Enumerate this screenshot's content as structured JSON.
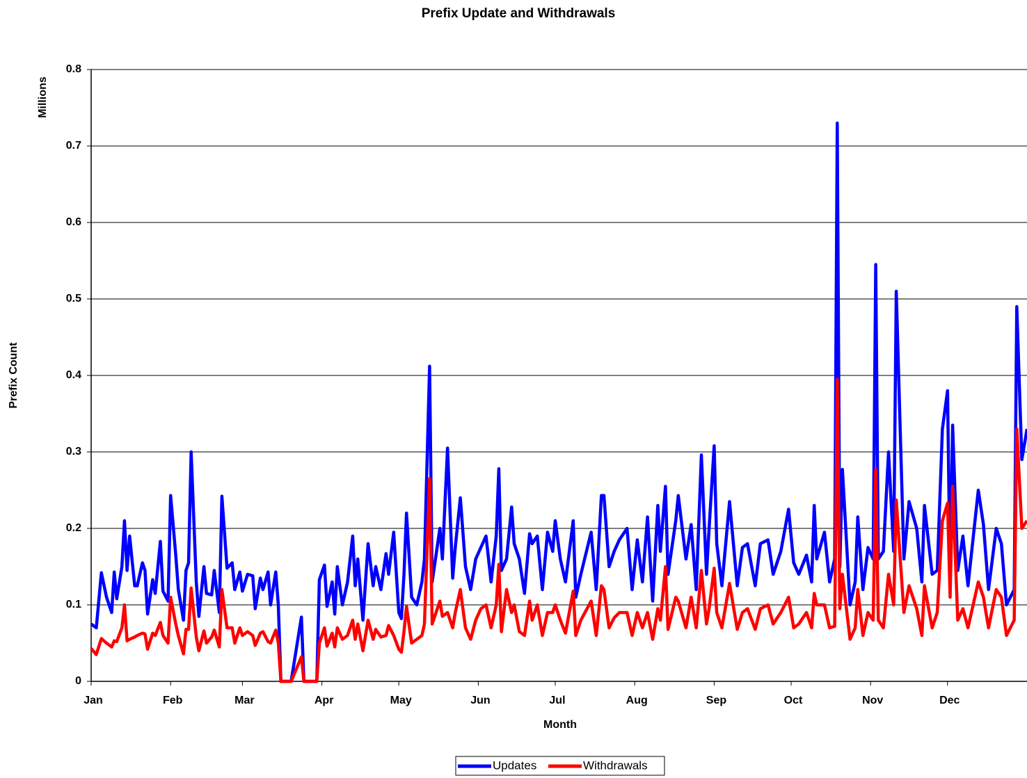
{
  "chart_data": {
    "type": "line",
    "title": "Prefix Update and Withdrawals",
    "x_label": "Month",
    "y_label": "Prefix Count",
    "y_unit_label": "Millions",
    "xlim": [
      0,
      365
    ],
    "xticks": [
      {
        "value": 0,
        "label": "Jan"
      },
      {
        "value": 31,
        "label": "Feb"
      },
      {
        "value": 59,
        "label": "Mar"
      },
      {
        "value": 90,
        "label": "Apr"
      },
      {
        "value": 120,
        "label": "May"
      },
      {
        "value": 151,
        "label": "Jun"
      },
      {
        "value": 181,
        "label": "Jul"
      },
      {
        "value": 212,
        "label": "Aug"
      },
      {
        "value": 243,
        "label": "Sep"
      },
      {
        "value": 273,
        "label": "Oct"
      },
      {
        "value": 304,
        "label": "Nov"
      },
      {
        "value": 334,
        "label": "Dec"
      }
    ],
    "ylim": [
      0,
      0.8
    ],
    "yticks": [
      0,
      0.1,
      0.2,
      0.3,
      0.4,
      0.5,
      0.6,
      0.7,
      0.8
    ],
    "grid": true,
    "legend": "bottom",
    "x": [
      0,
      2,
      4,
      6,
      8,
      9,
      10,
      12,
      13,
      14,
      15,
      17,
      18,
      20,
      21,
      22,
      24,
      25,
      27,
      28,
      30,
      31,
      33,
      34,
      36,
      37,
      38,
      39,
      41,
      42,
      44,
      45,
      47,
      48,
      50,
      51,
      53,
      55,
      56,
      58,
      59,
      61,
      63,
      64,
      66,
      67,
      69,
      70,
      72,
      73,
      74,
      78,
      82,
      83,
      88,
      89,
      91,
      92,
      94,
      95,
      96,
      98,
      100,
      102,
      103,
      104,
      106,
      108,
      110,
      111,
      113,
      115,
      116,
      118,
      120,
      121,
      122,
      123,
      125,
      127,
      129,
      130,
      132,
      133,
      136,
      137,
      139,
      141,
      142,
      144,
      146,
      148,
      150,
      152,
      154,
      156,
      158,
      159,
      160,
      162,
      164,
      165,
      167,
      169,
      171,
      172,
      174,
      176,
      178,
      180,
      181,
      183,
      185,
      188,
      189,
      191,
      195,
      197,
      199,
      200,
      202,
      204,
      206,
      209,
      211,
      213,
      215,
      217,
      219,
      221,
      222,
      224,
      225,
      228,
      229,
      232,
      234,
      236,
      238,
      240,
      241,
      243,
      244,
      246,
      249,
      252,
      254,
      256,
      259,
      261,
      264,
      266,
      269,
      272,
      274,
      276,
      279,
      281,
      282,
      283,
      286,
      288,
      290,
      291,
      292,
      293,
      296,
      298,
      299,
      301,
      303,
      305,
      306,
      307,
      309,
      311,
      313,
      314,
      317,
      319,
      322,
      324,
      325,
      328,
      330,
      332,
      334,
      335,
      336,
      338,
      340,
      342,
      346,
      348,
      350,
      353,
      355,
      357,
      360,
      361,
      363,
      365
    ],
    "series": [
      {
        "name": "Updates",
        "color": "#0000ff",
        "values": [
          0.075,
          0.07,
          0.142,
          0.11,
          0.09,
          0.143,
          0.108,
          0.15,
          0.21,
          0.145,
          0.19,
          0.125,
          0.125,
          0.155,
          0.145,
          0.088,
          0.133,
          0.115,
          0.183,
          0.118,
          0.105,
          0.243,
          0.165,
          0.12,
          0.08,
          0.145,
          0.155,
          0.3,
          0.13,
          0.085,
          0.15,
          0.115,
          0.113,
          0.145,
          0.09,
          0.242,
          0.148,
          0.155,
          0.12,
          0.143,
          0.118,
          0.14,
          0.138,
          0.095,
          0.135,
          0.12,
          0.143,
          0.1,
          0.143,
          0.1,
          0,
          0,
          0.084,
          0,
          0,
          0.133,
          0.152,
          0.098,
          0.13,
          0.088,
          0.15,
          0.1,
          0.13,
          0.19,
          0.125,
          0.16,
          0.08,
          0.18,
          0.125,
          0.15,
          0.12,
          0.167,
          0.14,
          0.195,
          0.09,
          0.082,
          0.14,
          0.22,
          0.11,
          0.1,
          0.13,
          0.16,
          0.412,
          0.13,
          0.2,
          0.16,
          0.305,
          0.135,
          0.175,
          0.24,
          0.15,
          0.12,
          0.16,
          0.175,
          0.19,
          0.13,
          0.19,
          0.278,
          0.145,
          0.16,
          0.228,
          0.18,
          0.16,
          0.115,
          0.193,
          0.18,
          0.19,
          0.12,
          0.195,
          0.17,
          0.21,
          0.16,
          0.13,
          0.21,
          0.11,
          0.14,
          0.195,
          0.12,
          0.243,
          0.243,
          0.15,
          0.17,
          0.185,
          0.2,
          0.12,
          0.185,
          0.13,
          0.215,
          0.105,
          0.23,
          0.17,
          0.255,
          0.14,
          0.21,
          0.243,
          0.16,
          0.205,
          0.12,
          0.296,
          0.14,
          0.2,
          0.308,
          0.18,
          0.125,
          0.235,
          0.125,
          0.175,
          0.18,
          0.125,
          0.18,
          0.185,
          0.14,
          0.17,
          0.225,
          0.155,
          0.14,
          0.165,
          0.13,
          0.23,
          0.16,
          0.195,
          0.13,
          0.16,
          0.73,
          0.15,
          0.277,
          0.1,
          0.13,
          0.215,
          0.12,
          0.175,
          0.16,
          0.545,
          0.16,
          0.17,
          0.3,
          0.17,
          0.51,
          0.16,
          0.235,
          0.2,
          0.13,
          0.23,
          0.14,
          0.145,
          0.33,
          0.38,
          0.13,
          0.335,
          0.145,
          0.19,
          0.125,
          0.25,
          0.205,
          0.12,
          0.2,
          0.18,
          0.1,
          0.12,
          0.49,
          0.29,
          0.33
        ]
      },
      {
        "name": "Withdrawals",
        "color": "#ff0000",
        "values": [
          0.043,
          0.035,
          0.056,
          0.05,
          0.045,
          0.053,
          0.052,
          0.07,
          0.1,
          0.053,
          0.055,
          0.058,
          0.06,
          0.063,
          0.062,
          0.042,
          0.063,
          0.06,
          0.077,
          0.06,
          0.05,
          0.11,
          0.075,
          0.06,
          0.036,
          0.068,
          0.068,
          0.122,
          0.058,
          0.04,
          0.066,
          0.05,
          0.058,
          0.067,
          0.045,
          0.12,
          0.07,
          0.07,
          0.05,
          0.07,
          0.06,
          0.065,
          0.06,
          0.047,
          0.063,
          0.065,
          0.052,
          0.05,
          0.067,
          0.05,
          0,
          0,
          0.032,
          0,
          0,
          0.05,
          0.07,
          0.046,
          0.063,
          0.045,
          0.07,
          0.055,
          0.06,
          0.08,
          0.055,
          0.075,
          0.04,
          0.08,
          0.055,
          0.068,
          0.058,
          0.06,
          0.073,
          0.06,
          0.042,
          0.038,
          0.065,
          0.098,
          0.05,
          0.055,
          0.06,
          0.075,
          0.265,
          0.075,
          0.105,
          0.085,
          0.09,
          0.07,
          0.09,
          0.12,
          0.07,
          0.055,
          0.08,
          0.095,
          0.1,
          0.07,
          0.1,
          0.153,
          0.065,
          0.12,
          0.09,
          0.1,
          0.065,
          0.06,
          0.105,
          0.08,
          0.1,
          0.06,
          0.09,
          0.09,
          0.1,
          0.08,
          0.063,
          0.118,
          0.06,
          0.08,
          0.105,
          0.06,
          0.125,
          0.12,
          0.07,
          0.083,
          0.09,
          0.09,
          0.06,
          0.09,
          0.07,
          0.09,
          0.055,
          0.095,
          0.08,
          0.15,
          0.068,
          0.11,
          0.105,
          0.07,
          0.11,
          0.07,
          0.145,
          0.075,
          0.095,
          0.148,
          0.09,
          0.07,
          0.128,
          0.068,
          0.09,
          0.095,
          0.068,
          0.095,
          0.1,
          0.075,
          0.09,
          0.11,
          0.07,
          0.075,
          0.09,
          0.07,
          0.115,
          0.1,
          0.1,
          0.07,
          0.072,
          0.395,
          0.095,
          0.14,
          0.055,
          0.07,
          0.12,
          0.06,
          0.09,
          0.08,
          0.277,
          0.08,
          0.07,
          0.14,
          0.1,
          0.237,
          0.09,
          0.125,
          0.095,
          0.06,
          0.125,
          0.07,
          0.09,
          0.21,
          0.233,
          0.11,
          0.255,
          0.08,
          0.095,
          0.07,
          0.13,
          0.11,
          0.07,
          0.12,
          0.11,
          0.06,
          0.08,
          0.33,
          0.2,
          0.21
        ]
      }
    ]
  }
}
